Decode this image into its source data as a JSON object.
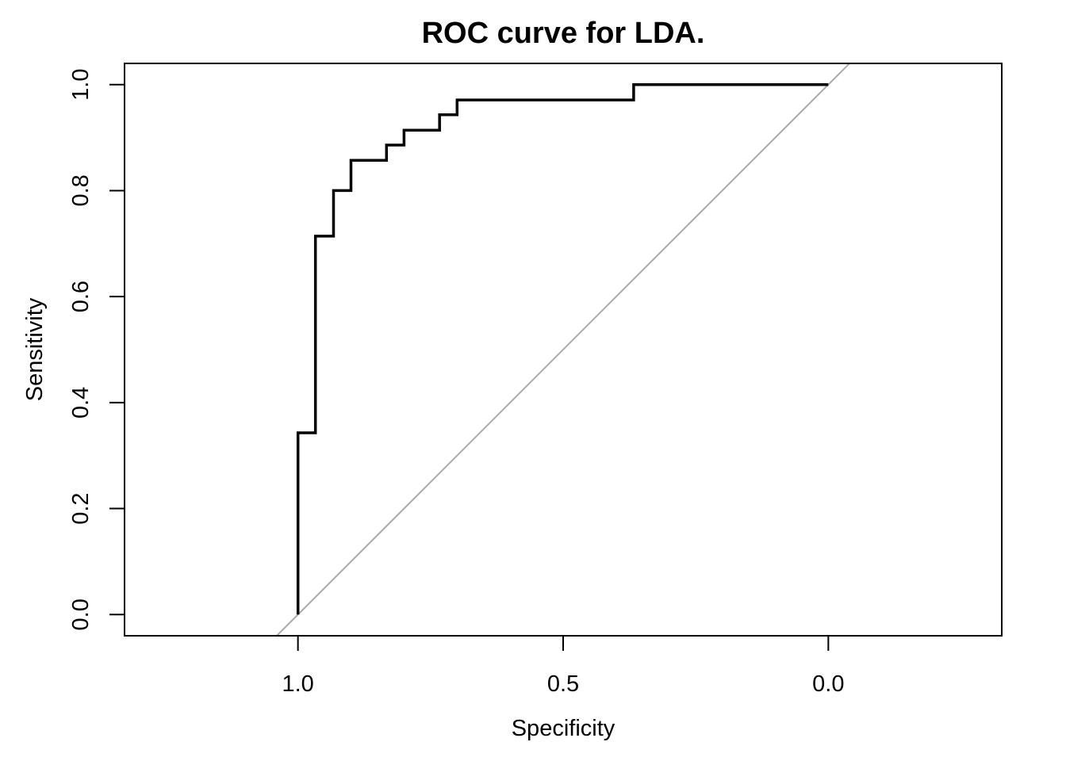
{
  "chart_data": {
    "type": "line",
    "title": "ROC curve for LDA.",
    "xlabel": "Specificity",
    "ylabel": "Sensitivity",
    "xlim": [
      1.327,
      -0.327
    ],
    "ylim": [
      -0.04,
      1.04
    ],
    "x_reversed": true,
    "x_ticks": [
      {
        "value": 1.0,
        "label": "1.0"
      },
      {
        "value": 0.5,
        "label": "0.5"
      },
      {
        "value": 0.0,
        "label": "0.0"
      }
    ],
    "y_ticks": [
      {
        "value": 0.0,
        "label": "0.0"
      },
      {
        "value": 0.2,
        "label": "0.2"
      },
      {
        "value": 0.4,
        "label": "0.4"
      },
      {
        "value": 0.6,
        "label": "0.6"
      },
      {
        "value": 0.8,
        "label": "0.8"
      },
      {
        "value": 1.0,
        "label": "1.0"
      }
    ],
    "grid": false,
    "legend": "none",
    "series": [
      {
        "color": "#000000",
        "points": [
          [
            1.0,
            0.0
          ],
          [
            1.0,
            0.343
          ],
          [
            0.967,
            0.343
          ],
          [
            0.967,
            0.714
          ],
          [
            0.933,
            0.714
          ],
          [
            0.933,
            0.8
          ],
          [
            0.9,
            0.8
          ],
          [
            0.9,
            0.857
          ],
          [
            0.833,
            0.857
          ],
          [
            0.833,
            0.886
          ],
          [
            0.8,
            0.886
          ],
          [
            0.8,
            0.914
          ],
          [
            0.733,
            0.914
          ],
          [
            0.733,
            0.943
          ],
          [
            0.7,
            0.943
          ],
          [
            0.7,
            0.971
          ],
          [
            0.367,
            0.971
          ],
          [
            0.367,
            1.0
          ],
          [
            0.0,
            1.0
          ]
        ]
      }
    ],
    "reference_line": {
      "color": "#aaaaaa",
      "description": "diagonal y = 1 - x",
      "points": [
        [
          1.04,
          -0.04
        ],
        [
          -0.04,
          1.04
        ]
      ]
    }
  }
}
